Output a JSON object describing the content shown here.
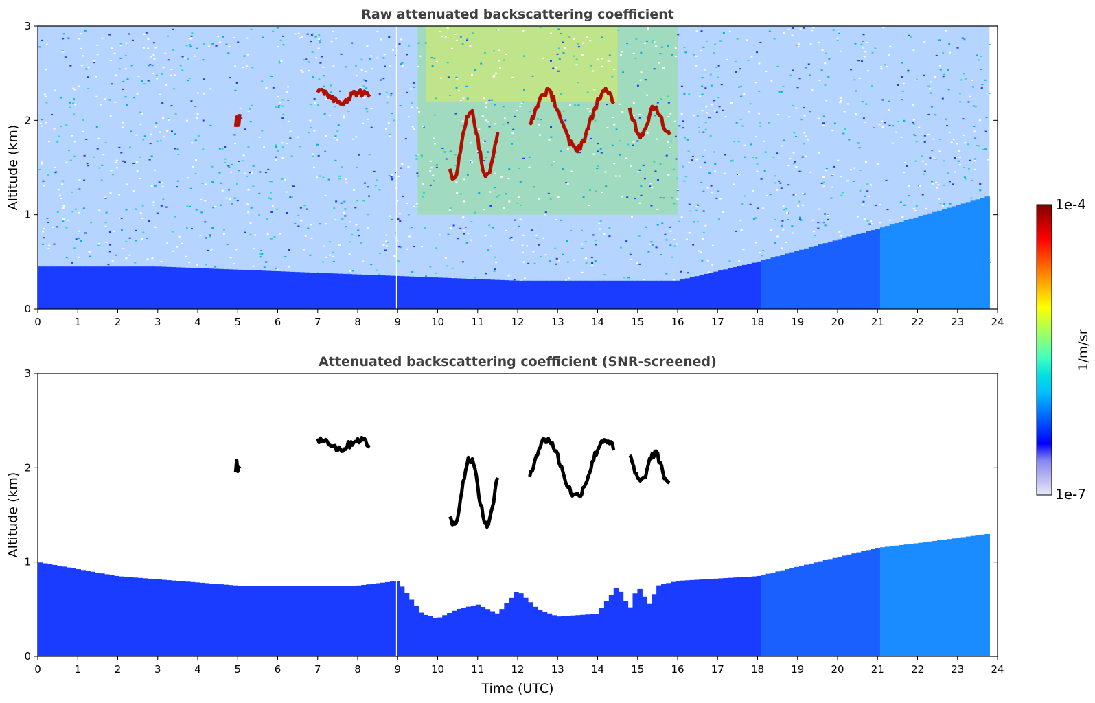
{
  "chart_data": [
    {
      "type": "heatmap",
      "title": "Raw attenuated backscattering coefficient",
      "xlabel": "",
      "ylabel": "Altitude (km)",
      "xlim": [
        0,
        24
      ],
      "ylim": [
        0,
        3
      ],
      "x_ticks": [
        "0",
        "1",
        "2",
        "3",
        "4",
        "5",
        "6",
        "7",
        "8",
        "9",
        "10",
        "11",
        "12",
        "13",
        "14",
        "15",
        "16",
        "17",
        "18",
        "19",
        "20",
        "21",
        "22",
        "23",
        "24"
      ],
      "y_ticks": [
        "0",
        "1",
        "2",
        "3"
      ],
      "data_end_x": 23.8,
      "boundary_layer_top_km": [
        [
          0,
          0.45
        ],
        [
          3,
          0.45
        ],
        [
          9,
          0.35
        ],
        [
          12,
          0.3
        ],
        [
          16,
          0.3
        ],
        [
          18,
          0.5
        ],
        [
          21,
          0.85
        ],
        [
          23.8,
          1.2
        ]
      ],
      "noise_level": "high above ~1 km; enhanced (green/yellow) between 9.5 and 16 UTC",
      "cloud_layers": [
        {
          "x_start": 4.95,
          "x_end": 5.05,
          "altitude_km": 2.0
        },
        {
          "x_start": 7.0,
          "x_end": 8.3,
          "altitude_km": 2.25
        },
        {
          "x_start": 10.3,
          "x_end": 11.5,
          "altitude_km": [
            1.4,
            2.1
          ]
        },
        {
          "x_start": 12.3,
          "x_end": 14.4,
          "altitude_km": [
            1.7,
            2.3
          ]
        },
        {
          "x_start": 14.8,
          "x_end": 15.8,
          "altitude_km": [
            1.85,
            2.15
          ]
        }
      ],
      "grid": false
    },
    {
      "type": "heatmap",
      "title": "Attenuated backscattering coefficient (SNR-screened)",
      "xlabel": "Time (UTC)",
      "ylabel": "Altitude (km)",
      "xlim": [
        0,
        24
      ],
      "ylim": [
        0,
        3
      ],
      "x_ticks": [
        "0",
        "1",
        "2",
        "3",
        "4",
        "5",
        "6",
        "7",
        "8",
        "9",
        "10",
        "11",
        "12",
        "13",
        "14",
        "15",
        "16",
        "17",
        "18",
        "19",
        "20",
        "21",
        "22",
        "23",
        "24"
      ],
      "y_ticks": [
        "0",
        "1",
        "2",
        "3"
      ],
      "data_end_x": 23.8,
      "screened_layer_top_km": [
        [
          0,
          1.0
        ],
        [
          2,
          0.85
        ],
        [
          5,
          0.75
        ],
        [
          8,
          0.75
        ],
        [
          9,
          0.8
        ],
        [
          9.6,
          0.45
        ],
        [
          10,
          0.4
        ],
        [
          10.5,
          0.5
        ],
        [
          11,
          0.55
        ],
        [
          11.5,
          0.45
        ],
        [
          12,
          0.7
        ],
        [
          12.5,
          0.5
        ],
        [
          13,
          0.42
        ],
        [
          14,
          0.45
        ],
        [
          14.5,
          0.75
        ],
        [
          14.8,
          0.5
        ],
        [
          15,
          0.75
        ],
        [
          15.3,
          0.55
        ],
        [
          15.5,
          0.75
        ],
        [
          16,
          0.8
        ],
        [
          18,
          0.85
        ],
        [
          19,
          0.95
        ],
        [
          20,
          1.05
        ],
        [
          21,
          1.15
        ],
        [
          22,
          1.2
        ],
        [
          23.8,
          1.3
        ]
      ],
      "cloud_layers": [
        {
          "x_start": 4.95,
          "x_end": 5.05,
          "altitude_km": 2.0
        },
        {
          "x_start": 7.0,
          "x_end": 8.3,
          "altitude_km": 2.25
        },
        {
          "x_start": 10.3,
          "x_end": 11.5,
          "altitude_km": [
            1.4,
            2.1
          ]
        },
        {
          "x_start": 12.3,
          "x_end": 14.4,
          "altitude_km": [
            1.7,
            2.3
          ]
        },
        {
          "x_start": 14.8,
          "x_end": 15.8,
          "altitude_km": [
            1.85,
            2.15
          ]
        }
      ],
      "grid": false
    }
  ],
  "colorbar": {
    "label": "1/m/sr",
    "max_label": "1e-4",
    "min_label": "1e-7",
    "colormap": "jet",
    "colors": [
      "#e8e8f8",
      "#b8b8f0",
      "#8888f0",
      "#0000ff",
      "#0040ff",
      "#0080ff",
      "#00c0ff",
      "#00e0e0",
      "#40ffc0",
      "#80ff80",
      "#c0ff40",
      "#ffff00",
      "#ffc000",
      "#ff8000",
      "#ff4000",
      "#ff0000",
      "#c00000",
      "#800000"
    ]
  },
  "colors": {
    "background": "#ffffff",
    "cloud_raw": "#b01000",
    "cloud_screened": "#000000",
    "boundary_layer": "#1a3cff"
  }
}
